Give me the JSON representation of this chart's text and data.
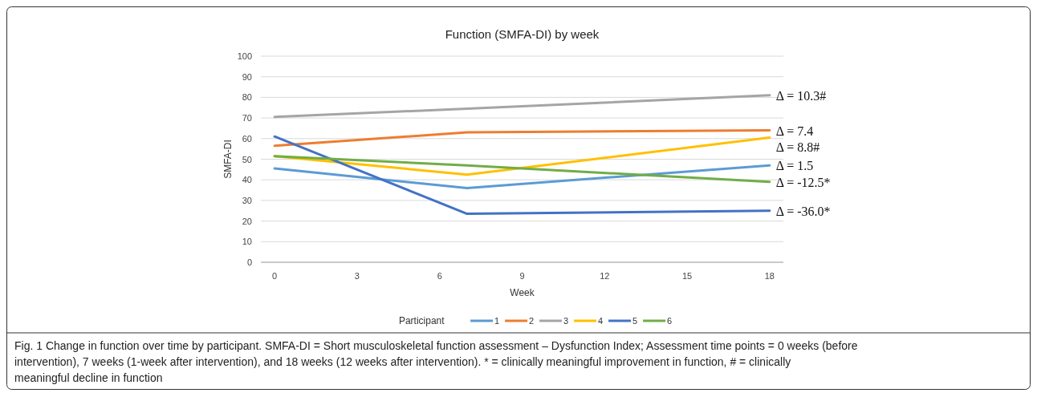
{
  "chart_data": {
    "type": "line",
    "title": "Function (SMFA-DI) by week",
    "xlabel": "Week",
    "ylabel": "SMFA-DI",
    "legend_title": "Participant",
    "legend": "bottom",
    "grid": "y",
    "x": [
      0,
      7,
      18
    ],
    "xlim": [
      -0.5,
      18.5
    ],
    "xticks": [
      0,
      3,
      6,
      9,
      12,
      15,
      18
    ],
    "ylim": [
      0,
      100
    ],
    "yticks": [
      0,
      10,
      20,
      30,
      40,
      50,
      60,
      70,
      80,
      90,
      100
    ],
    "series": [
      {
        "name": "1",
        "color": "#5b9bd5",
        "values": [
          45.5,
          36,
          47
        ]
      },
      {
        "name": "2",
        "color": "#ed7d31",
        "values": [
          56.5,
          63,
          64
        ]
      },
      {
        "name": "3",
        "color": "#a5a5a5",
        "values": [
          70.5,
          74.5,
          81
        ]
      },
      {
        "name": "4",
        "color": "#ffc000",
        "values": [
          51.5,
          42.5,
          60.5
        ]
      },
      {
        "name": "5",
        "color": "#4472c4",
        "values": [
          61,
          23.5,
          25
        ]
      },
      {
        "name": "6",
        "color": "#70ad47",
        "values": [
          51.5,
          47,
          39
        ]
      }
    ],
    "annotations": [
      "Δ = 1.5",
      "Δ = 7.4",
      "Δ = 10.3#",
      "Δ = 8.8#",
      "Δ = -36.0*",
      "Δ = -12.5*",
      "Fig. 1 Change in function over time by participant. SMFA-DI = Short musculoskeletal function assessment – Dysfunction Index; Assessment time points = 0 weeks (before intervention), 7 weeks (1-week after intervention), and 18 weeks (12 weeks after intervention). * = clinically meaningful improvement in function, # = clinically meaningful decline in function"
    ]
  }
}
